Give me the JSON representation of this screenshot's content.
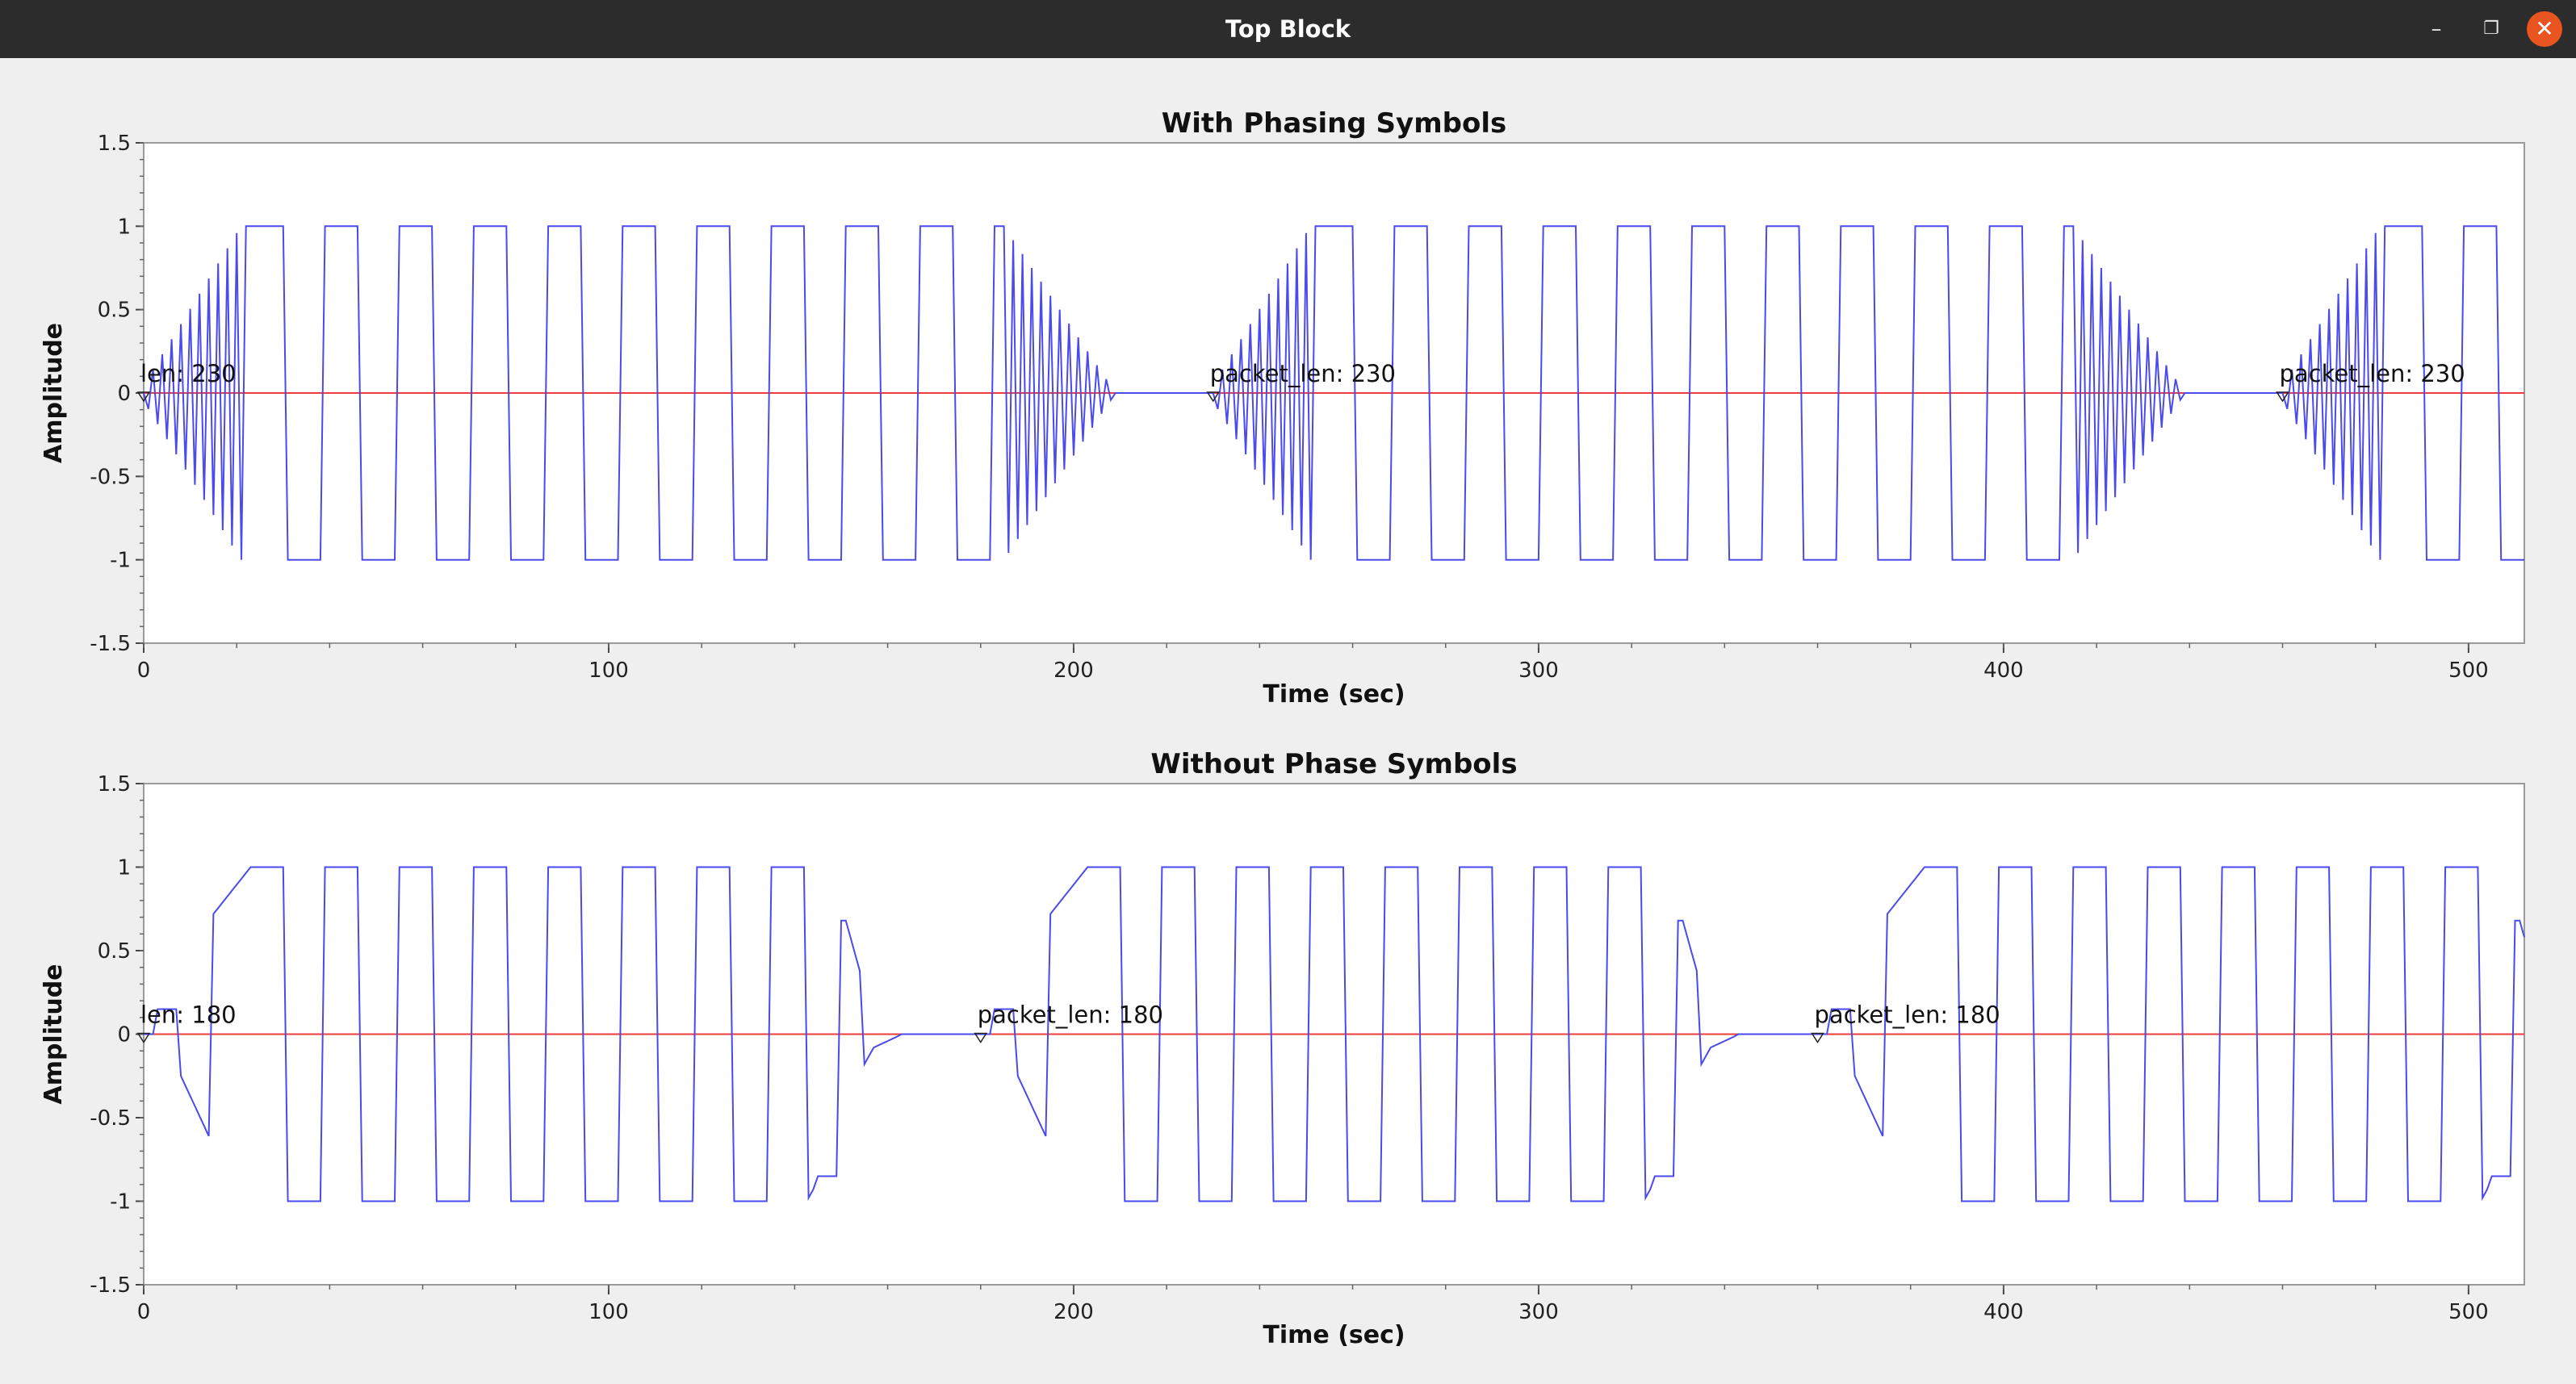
{
  "window": {
    "title": "Top Block",
    "buttons": {
      "minimize": "–",
      "maximize": "❐",
      "close": "✕"
    }
  },
  "colors": {
    "signal": "#4a4aee",
    "zero_line": "#ee3b3b",
    "plot_bg": "#ffffff",
    "window_bg": "#efefef",
    "titlebar": "#2c2c2c",
    "close": "#e95420"
  },
  "chart_data": [
    {
      "type": "line",
      "title": "With Phasing Symbols",
      "xlabel": "Time (sec)",
      "ylabel": "Amplitude",
      "xlim": [
        0,
        512
      ],
      "ylim": [
        -1.5,
        1.5
      ],
      "xticks": [
        0,
        100,
        200,
        300,
        400,
        500
      ],
      "xtick_labels": [
        "0",
        "100",
        "200",
        "300",
        "400",
        "500"
      ],
      "yticks": [
        1.5,
        1,
        0.5,
        0,
        -0.5,
        -1,
        -1.5
      ],
      "ytick_labels": [
        "1.5",
        "1",
        "0.5",
        "0",
        "-0.5",
        "-1",
        "-1.5"
      ],
      "grid": false,
      "series": [
        {
          "period_samples": 230,
          "chirp_end": 23,
          "bits_start": 23,
          "bits_end": 205,
          "chirp2_end": 207,
          "square_half_period": 8,
          "burst_tail_start": 185,
          "burst_tail_end": 210
        }
      ],
      "tags": [
        {
          "x": 0,
          "label": "len: 230"
        },
        {
          "x": 230,
          "label": "packet_len: 230"
        },
        {
          "x": 460,
          "label": "packet_len: 230"
        }
      ]
    },
    {
      "type": "line",
      "title": "Without Phase Symbols",
      "xlabel": "Time (sec)",
      "ylabel": "Amplitude",
      "xlim": [
        0,
        512
      ],
      "ylim": [
        -1.5,
        1.5
      ],
      "xticks": [
        0,
        100,
        200,
        300,
        400,
        500
      ],
      "xtick_labels": [
        "0",
        "100",
        "200",
        "300",
        "400",
        "500"
      ],
      "yticks": [
        1.5,
        1,
        0.5,
        0,
        -0.5,
        -1,
        -1.5
      ],
      "ytick_labels": [
        "1.5",
        "1",
        "0.5",
        "0",
        "-0.5",
        "-1",
        "-1.5"
      ],
      "grid": false,
      "series": [
        {
          "period_samples": 180,
          "square_half_period": 8
        }
      ],
      "tags": [
        {
          "x": 0,
          "label": "len: 180"
        },
        {
          "x": 180,
          "label": "packet_len: 180"
        },
        {
          "x": 360,
          "label": "packet_len: 180"
        }
      ]
    }
  ]
}
